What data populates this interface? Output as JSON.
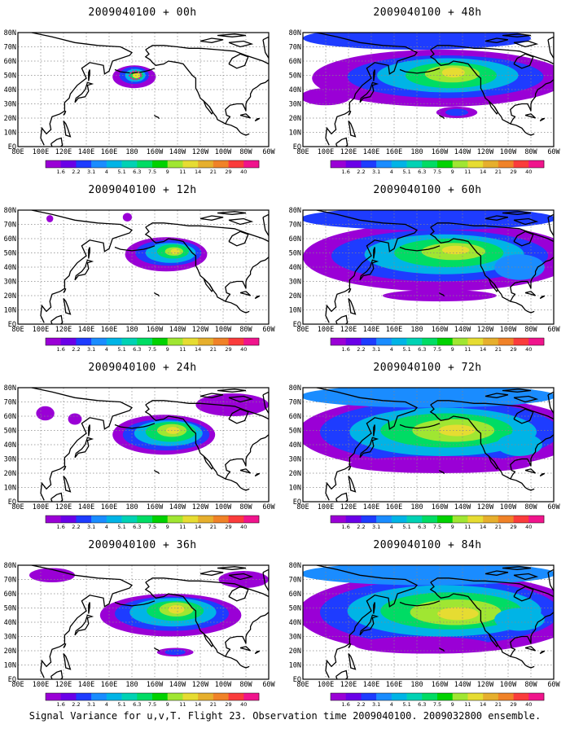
{
  "panels": [
    {
      "title": "2009040100 + 00h",
      "lead": 0
    },
    {
      "title": "2009040100 + 48h",
      "lead": 48
    },
    {
      "title": "2009040100 + 12h",
      "lead": 12
    },
    {
      "title": "2009040100 + 60h",
      "lead": 60
    },
    {
      "title": "2009040100 + 24h",
      "lead": 24
    },
    {
      "title": "2009040100 + 72h",
      "lead": 72
    },
    {
      "title": "2009040100 + 36h",
      "lead": 36
    },
    {
      "title": "2009040100 + 84h",
      "lead": 84
    }
  ],
  "lat_labels": [
    "80N",
    "70N",
    "60N",
    "50N",
    "40N",
    "30N",
    "20N",
    "10N",
    "EQ"
  ],
  "lon_labels": [
    "80E",
    "100E",
    "120E",
    "140E",
    "160E",
    "180",
    "160W",
    "140W",
    "120W",
    "100W",
    "80W",
    "60W"
  ],
  "colorbar": {
    "labels": [
      "1.6",
      "2.2",
      "3.1",
      "4",
      "5.1",
      "6.3",
      "7.5",
      "9",
      "11",
      "14",
      "21",
      "29",
      "40"
    ],
    "colors": [
      "#9a00d6",
      "#6a00e8",
      "#1e3cff",
      "#1a8cff",
      "#00b4e6",
      "#00d2b4",
      "#00dc64",
      "#00d200",
      "#a0e632",
      "#e6dc32",
      "#e6af2d",
      "#f08228",
      "#fa3c3c",
      "#f0148c"
    ]
  },
  "footer": "Signal Variance for u,v,T. Flight 23. Observation time 2009040100. 2009032800 ensemble."
}
